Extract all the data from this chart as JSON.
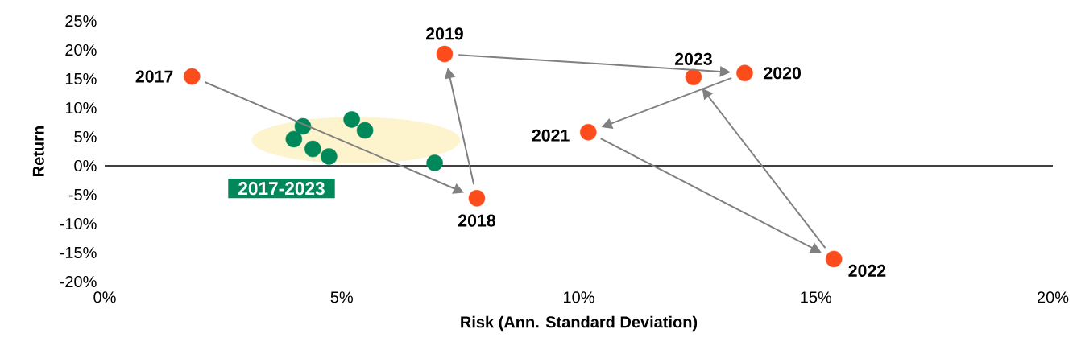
{
  "chart_data": {
    "type": "scatter",
    "xlabel": "Risk (Ann. Standard Deviation)",
    "ylabel": "Return",
    "xlim": [
      0,
      20
    ],
    "ylim": [
      -20,
      25
    ],
    "xticks": [
      {
        "value": 0,
        "label": "0%"
      },
      {
        "value": 5,
        "label": "5%"
      },
      {
        "value": 10,
        "label": "10%"
      },
      {
        "value": 15,
        "label": "15%"
      },
      {
        "value": 20,
        "label": "20%"
      }
    ],
    "yticks": [
      {
        "value": -20,
        "label": "-20%"
      },
      {
        "value": -15,
        "label": "-15%"
      },
      {
        "value": -10,
        "label": "-10%"
      },
      {
        "value": -5,
        "label": "-5%"
      },
      {
        "value": 0,
        "label": "0%"
      },
      {
        "value": 5,
        "label": "5%"
      },
      {
        "value": 10,
        "label": "10%"
      },
      {
        "value": 15,
        "label": "15%"
      },
      {
        "value": 20,
        "label": "20%"
      },
      {
        "value": 25,
        "label": "25%"
      }
    ],
    "grid": false,
    "ref_lines": [
      {
        "axis": "y",
        "value": 0,
        "color": "#000000"
      }
    ],
    "series": [
      {
        "color": "#00875a",
        "x": [
          3.99,
          4.18,
          4.39,
          4.73,
          5.21,
          5.49,
          6.96
        ],
        "values": [
          4.6,
          6.8,
          2.9,
          1.6,
          8.0,
          6.1,
          0.5
        ]
      },
      {
        "color": "#fc4c1c",
        "x": [
          1.84,
          7.85,
          7.17,
          13.5,
          10.2,
          15.38,
          12.42
        ],
        "values": [
          15.4,
          -5.6,
          19.3,
          16.0,
          5.8,
          -16.1,
          15.3
        ]
      }
    ],
    "annotations": [
      {
        "text": "2017",
        "x": 1.84,
        "y": 15.4
      },
      {
        "text": "2018",
        "x": 7.85,
        "y": -5.6
      },
      {
        "text": "2019",
        "x": 7.17,
        "y": 19.3
      },
      {
        "text": "2020",
        "x": 13.5,
        "y": 16.0
      },
      {
        "text": "2021",
        "x": 10.2,
        "y": 5.8
      },
      {
        "text": "2022",
        "x": 15.38,
        "y": -16.1
      },
      {
        "text": "2023",
        "x": 12.42,
        "y": 15.3
      },
      "2017-2023"
    ]
  }
}
